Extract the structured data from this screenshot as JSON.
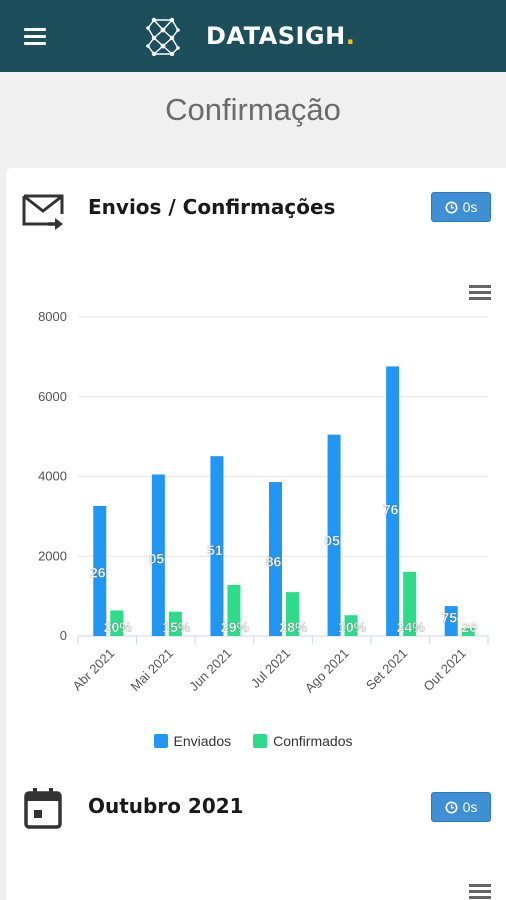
{
  "header": {
    "brand_name": "DATASIGH",
    "brand_suffix": "."
  },
  "page_title": "Confirmação",
  "cards": [
    {
      "title": "Envios / Confirmações",
      "timer": "0s"
    },
    {
      "title": "Outubro 2021",
      "timer": "0s"
    }
  ],
  "colors": {
    "header_bg": "#1d4e5c",
    "enviados": "#2196f3",
    "confirmados": "#2edb8a",
    "badge": "#3f8fd4"
  },
  "chart_data": {
    "type": "bar",
    "categories": [
      "Abr 2021",
      "Mai 2021",
      "Jun 2021",
      "Jul 2021",
      "Ago 2021",
      "Set 2021",
      "Out 2021"
    ],
    "series": [
      {
        "name": "Enviados",
        "values": [
          3260,
          4050,
          4510,
          3860,
          5050,
          6760,
          750
        ],
        "data_labels": [
          "26",
          "05",
          "51",
          "86",
          "05",
          "76",
          "75"
        ]
      },
      {
        "name": "Confirmados",
        "values": [
          640,
          610,
          1280,
          1100,
          520,
          1610,
          200
        ],
        "data_labels": [
          "20%",
          "15%",
          "29%",
          "28%",
          "10%",
          "24%",
          "26"
        ]
      }
    ],
    "yticks": [
      "0",
      "2000",
      "4000",
      "6000",
      "8000"
    ],
    "ylim": [
      0,
      8000
    ],
    "grid": true,
    "legend_position": "bottom"
  }
}
